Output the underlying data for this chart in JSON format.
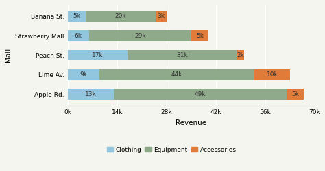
{
  "malls": [
    "Apple Rd.",
    "Lime Av.",
    "Peach St.",
    "Strawberry Mall",
    "Banana St."
  ],
  "clothing": [
    13000,
    9000,
    17000,
    6000,
    5000
  ],
  "equipment": [
    49000,
    44000,
    31000,
    29000,
    20000
  ],
  "accessories": [
    5000,
    10000,
    2000,
    5000,
    3000
  ],
  "clothing_labels": [
    "13k",
    "9k",
    "17k",
    "6k",
    "5k"
  ],
  "equipment_labels": [
    "49k",
    "44k",
    "31k",
    "29k",
    "20k"
  ],
  "accessories_labels": [
    "5k",
    "10k",
    "2k",
    "5k",
    "3k"
  ],
  "color_clothing": "#92c5de",
  "color_equipment": "#8faa8b",
  "color_accessories": "#e07b3a",
  "xlabel": "Revenue",
  "ylabel": "Mall",
  "xlim": [
    0,
    70000
  ],
  "xticks": [
    0,
    14000,
    28000,
    42000,
    56000,
    70000
  ],
  "xtick_labels": [
    "0k",
    "14k",
    "28k",
    "42k",
    "56k",
    "70k"
  ],
  "legend_labels": [
    "Clothing",
    "Equipment",
    "Accessories"
  ],
  "bar_height": 0.55,
  "label_fontsize": 6.5,
  "axis_fontsize": 7.5,
  "tick_fontsize": 6.5,
  "legend_fontsize": 6.5,
  "bg_color": "#f5f5f0"
}
